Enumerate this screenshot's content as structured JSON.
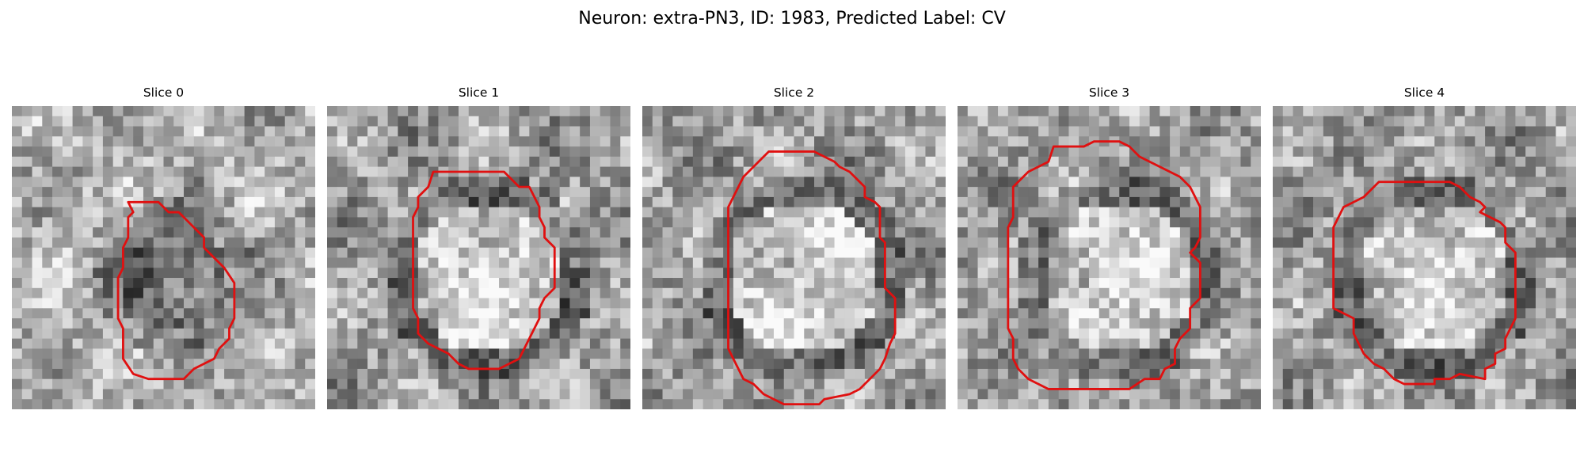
{
  "figure": {
    "title": "Neuron: extra-PN3, ID: 1983, Predicted Label: CV"
  },
  "slices": [
    {
      "label": "Slice 0",
      "contour_color": "#e01010",
      "seed": 11,
      "bright_center": false
    },
    {
      "label": "Slice 1",
      "contour_color": "#e01010",
      "seed": 23,
      "bright_center": true
    },
    {
      "label": "Slice 2",
      "contour_color": "#e01010",
      "seed": 37,
      "bright_center": true
    },
    {
      "label": "Slice 3",
      "contour_color": "#e01010",
      "seed": 41,
      "bright_center": true
    },
    {
      "label": "Slice 4",
      "contour_color": "#e01010",
      "seed": 59,
      "bright_center": true
    }
  ]
}
